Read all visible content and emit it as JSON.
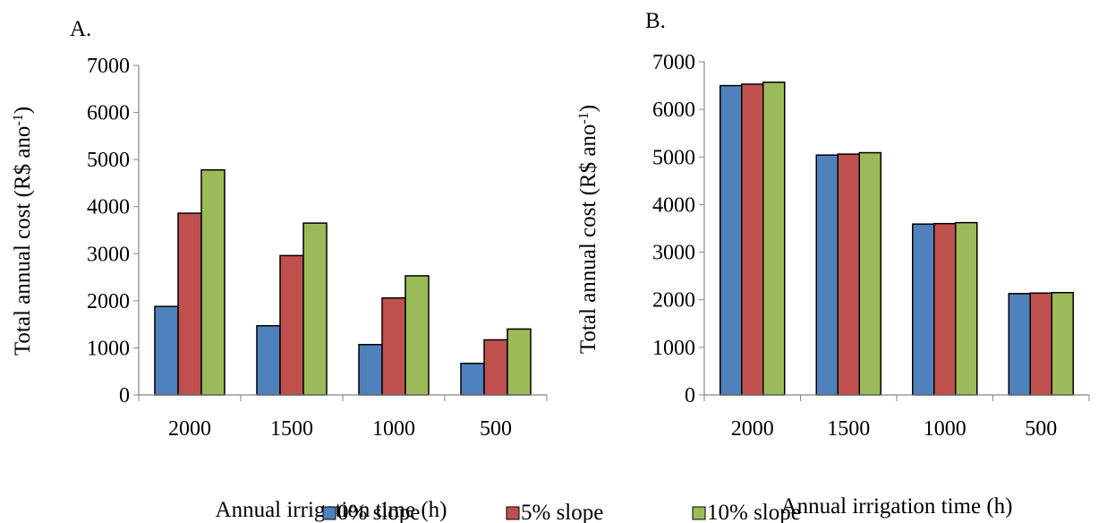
{
  "chart_data": [
    {
      "panel_label": "A.",
      "type": "bar",
      "xlabel": "Annual irrigation time (h)",
      "ylabel_main": "Total annual cost (R$ ano",
      "ylabel_sup": "-1",
      "ylabel_end": ")",
      "ylim": [
        0,
        7000
      ],
      "yticks": [
        "0",
        "1000",
        "2000",
        "3000",
        "4000",
        "5000",
        "6000",
        "7000"
      ],
      "categories": [
        "2000",
        "1500",
        "1000",
        "500"
      ],
      "series": [
        {
          "name": "0% slope",
          "color": "#4f81bd",
          "values": [
            1880,
            1470,
            1070,
            670
          ]
        },
        {
          "name": "5% slope",
          "color": "#c0504d",
          "values": [
            3860,
            2960,
            2060,
            1170
          ]
        },
        {
          "name": "10% slope",
          "color": "#9bbb59",
          "values": [
            4780,
            3650,
            2530,
            1400
          ]
        }
      ]
    },
    {
      "panel_label": "B.",
      "type": "bar",
      "xlabel": "Annual irrigation time (h)",
      "ylabel_main": "Total annual cost (R$ ano",
      "ylabel_sup": "-1",
      "ylabel_end": ")",
      "ylim": [
        0,
        7000
      ],
      "yticks": [
        "0",
        "1000",
        "2000",
        "3000",
        "4000",
        "5000",
        "6000",
        "7000"
      ],
      "categories": [
        "2000",
        "1500",
        "1000",
        "500"
      ],
      "series": [
        {
          "name": "0% slope",
          "color": "#4f81bd",
          "values": [
            6500,
            5040,
            3590,
            2130
          ]
        },
        {
          "name": "5% slope",
          "color": "#c0504d",
          "values": [
            6530,
            5060,
            3600,
            2140
          ]
        },
        {
          "name": "10% slope",
          "color": "#9bbb59",
          "values": [
            6570,
            5090,
            3620,
            2150
          ]
        }
      ]
    }
  ],
  "legend": {
    "placement": "bottom-center",
    "items": [
      {
        "label": "0% slope",
        "color": "#4f81bd"
      },
      {
        "label": "5% slope",
        "color": "#c0504d"
      },
      {
        "label": "10% slope",
        "color": "#9bbb59"
      }
    ]
  }
}
